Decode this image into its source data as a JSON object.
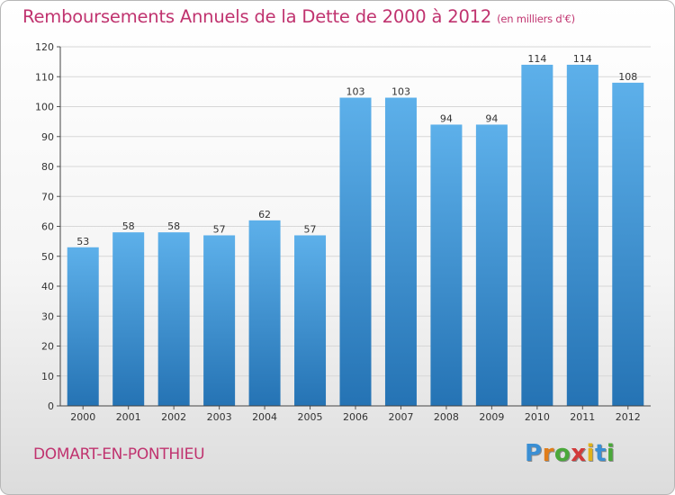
{
  "title": "Remboursements Annuels de la Dette de 2000 à 2012",
  "unit_note": "(en milliers d'€)",
  "commune": "DOMART-EN-PONTHIEU",
  "logo": {
    "letters": [
      "P",
      "r",
      "o",
      "x",
      "i",
      "t",
      "i"
    ],
    "colors": [
      "#3a8fd4",
      "#e07d1a",
      "#4aa83a",
      "#d23a3a",
      "#e0b21a",
      "#3a8fd4",
      "#4aa83a"
    ]
  },
  "colors": {
    "title": "#c0336f",
    "bar_top": "#5db0ea",
    "bar_bottom": "#2573b4",
    "grid": "#d7d7d7"
  },
  "chart_data": {
    "type": "bar",
    "title": "Remboursements Annuels de la Dette de 2000 à 2012",
    "categories": [
      "2000",
      "2001",
      "2002",
      "2003",
      "2004",
      "2005",
      "2006",
      "2007",
      "2008",
      "2009",
      "2010",
      "2011",
      "2012"
    ],
    "values": [
      53,
      58,
      58,
      57,
      62,
      57,
      103,
      103,
      94,
      94,
      114,
      114,
      108
    ],
    "ylim": [
      0,
      120
    ],
    "yticks": [
      0,
      10,
      20,
      30,
      40,
      50,
      60,
      70,
      80,
      90,
      100,
      110,
      120
    ],
    "grid": true,
    "xlabel": "",
    "ylabel": ""
  }
}
